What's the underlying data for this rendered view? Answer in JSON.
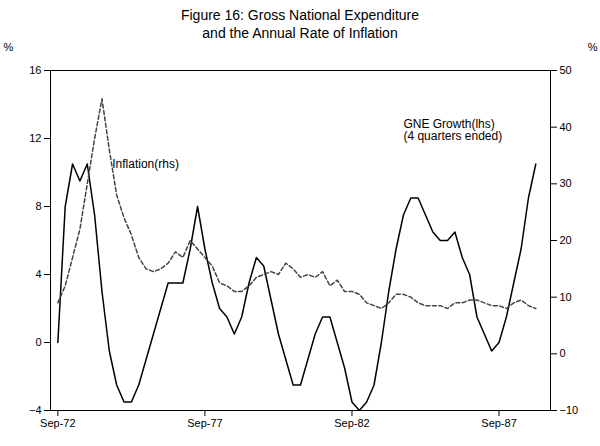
{
  "chart_data": {
    "type": "line",
    "title": "Figure 16: Gross National Expenditure\nand the Annual Rate of Inflation",
    "x": [
      1972.75,
      1973.0,
      1973.25,
      1973.5,
      1973.75,
      1974.0,
      1974.25,
      1974.5,
      1974.75,
      1975.0,
      1975.25,
      1975.5,
      1975.75,
      1976.0,
      1976.25,
      1976.5,
      1976.75,
      1977.0,
      1977.25,
      1977.5,
      1977.75,
      1978.0,
      1978.25,
      1978.5,
      1978.75,
      1979.0,
      1979.25,
      1979.5,
      1979.75,
      1980.0,
      1980.25,
      1980.5,
      1980.75,
      1981.0,
      1981.25,
      1981.5,
      1981.75,
      1982.0,
      1982.25,
      1982.5,
      1982.75,
      1983.0,
      1983.25,
      1983.5,
      1983.75,
      1984.0,
      1984.25,
      1984.5,
      1984.75,
      1985.0,
      1985.25,
      1985.5,
      1985.75,
      1986.0,
      1986.25,
      1986.5,
      1986.75,
      1987.0,
      1987.25,
      1987.5,
      1987.75,
      1988.0,
      1988.25,
      1988.5,
      1988.75,
      1989.0
    ],
    "series": [
      {
        "color": "#000000",
        "line_style": "solid",
        "axis": "y",
        "values": [
          0.0,
          8.0,
          10.5,
          9.5,
          10.5,
          7.5,
          3.0,
          -0.5,
          -2.5,
          -3.5,
          -3.5,
          -2.5,
          -1.0,
          0.5,
          2.0,
          3.5,
          3.5,
          3.5,
          5.5,
          8.0,
          5.5,
          3.5,
          2.0,
          1.5,
          0.5,
          1.5,
          3.5,
          5.0,
          4.5,
          2.5,
          0.5,
          -1.0,
          -2.5,
          -2.5,
          -1.0,
          0.5,
          1.5,
          1.5,
          0.0,
          -1.5,
          -3.5,
          -4.0,
          -3.5,
          -2.5,
          0.0,
          3.0,
          5.5,
          7.5,
          8.5,
          8.5,
          7.5,
          6.5,
          6.0,
          6.0,
          6.5,
          5.0,
          4.0,
          1.5,
          0.5,
          -0.5,
          0.0,
          1.5,
          3.5,
          5.5,
          8.5,
          10.5
        ]
      },
      {
        "color": "#444444",
        "line_style": "dashed",
        "axis": "y2",
        "values": [
          9.0,
          12.0,
          17.0,
          22.0,
          30.0,
          38.0,
          45.0,
          36.0,
          28.0,
          24.0,
          21.0,
          17.0,
          15.0,
          14.5,
          15.0,
          16.0,
          18.0,
          17.0,
          20.0,
          18.5,
          17.0,
          15.5,
          12.5,
          12.0,
          11.0,
          11.0,
          12.0,
          13.5,
          14.0,
          14.5,
          14.0,
          16.0,
          15.0,
          13.5,
          14.0,
          13.5,
          14.5,
          12.0,
          13.0,
          11.0,
          11.0,
          10.5,
          9.0,
          8.5,
          8.0,
          9.0,
          10.5,
          10.5,
          10.0,
          9.0,
          8.5,
          8.5,
          8.5,
          8.0,
          9.0,
          9.0,
          9.5,
          9.5,
          9.0,
          8.5,
          8.5,
          8.0,
          9.0,
          9.5,
          8.5,
          8.0
        ]
      }
    ],
    "xlim": [
      1972.5,
      1989.5
    ],
    "xticks": [
      {
        "value": 1972.75,
        "label": "Sep-72"
      },
      {
        "value": 1977.75,
        "label": "Sep-77"
      },
      {
        "value": 1982.75,
        "label": "Sep-82"
      },
      {
        "value": 1987.75,
        "label": "Sep-87"
      }
    ],
    "ylim": [
      -4,
      16
    ],
    "yticks": [
      -4,
      0,
      4,
      8,
      12,
      16
    ],
    "ylabel": "%",
    "y2lim": [
      -10,
      50
    ],
    "y2ticks": [
      -10,
      0,
      10,
      20,
      30,
      40,
      50
    ],
    "y2label": "%",
    "grid": false,
    "annotations": [
      {
        "text": "Inflation(rhs)",
        "x": 1974.6,
        "y": 10.5
      },
      {
        "text": "GNE Growth(lhs)\n(4 quarters ended)",
        "x": 1984.5,
        "y": 12.5
      }
    ]
  }
}
